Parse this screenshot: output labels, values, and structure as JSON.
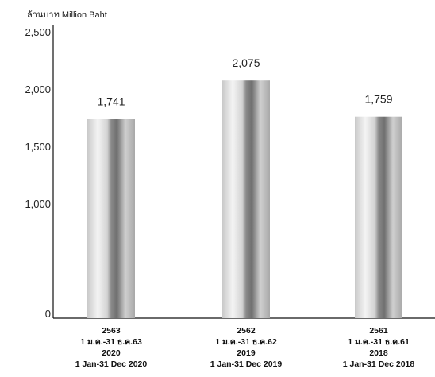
{
  "chart_data": {
    "type": "bar",
    "ylabel": "ล้านบาท Million Baht",
    "y_ticks": [
      "0",
      "1,500",
      "2,000",
      "2,500"
    ],
    "y_ticks_extra": [
      "1,000"
    ],
    "ylim": [
      0,
      2500
    ],
    "grid": false,
    "categories": [
      [
        "2563",
        "1 ม.ค.-31 ธ.ค.63",
        "2020",
        "1 Jan-31 Dec 2020"
      ],
      [
        "2562",
        "1 ม.ค.-31 ธ.ค.62",
        "2019",
        "1 Jan-31 Dec 2019"
      ],
      [
        "2561",
        "1 ม.ค.-31 ธ.ค.61",
        "2018",
        "1 Jan-31 Dec 2018"
      ]
    ],
    "values": [
      1741,
      2075,
      1759
    ],
    "value_labels": [
      "1,741",
      "2,075",
      "1,759"
    ]
  }
}
